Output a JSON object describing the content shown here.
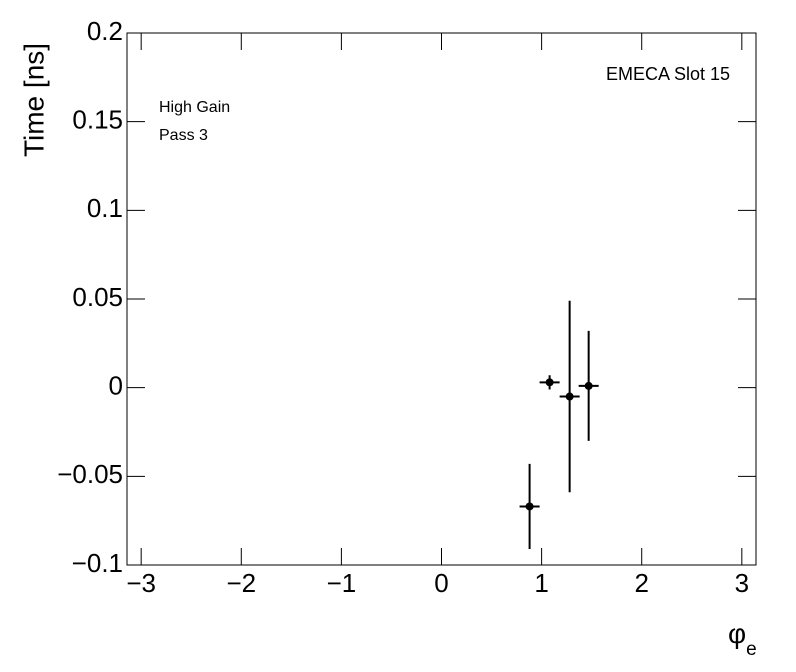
{
  "chart_data": {
    "type": "errorbar",
    "y_label": "Time [ns]",
    "x_label": {
      "symbol": "φ",
      "subscript": "e"
    },
    "annotations": [
      "EMECA Slot 15",
      "High Gain",
      "Pass 3"
    ],
    "xlim": [
      -3.1416,
      3.1416
    ],
    "ylim": [
      -0.1,
      0.2
    ],
    "xticks": [
      {
        "value": -3,
        "label": "−3"
      },
      {
        "value": -2,
        "label": "−2"
      },
      {
        "value": -1,
        "label": "−1"
      },
      0,
      1,
      2,
      3
    ],
    "yticks": [
      {
        "value": -0.1,
        "label": "−0.1"
      },
      {
        "value": -0.05,
        "label": "−0.05"
      },
      0,
      0.05,
      0.1,
      0.15,
      0.2
    ],
    "series": [
      {
        "color": "#000000",
        "x": [
          0.88,
          1.08,
          1.28,
          1.47
        ],
        "xerr": [
          0.1,
          0.1,
          0.1,
          0.1
        ],
        "values": [
          -0.067,
          0.003,
          -0.005,
          0.001
        ],
        "yerr": [
          0.024,
          0.004,
          0.054,
          0.031
        ]
      }
    ]
  }
}
